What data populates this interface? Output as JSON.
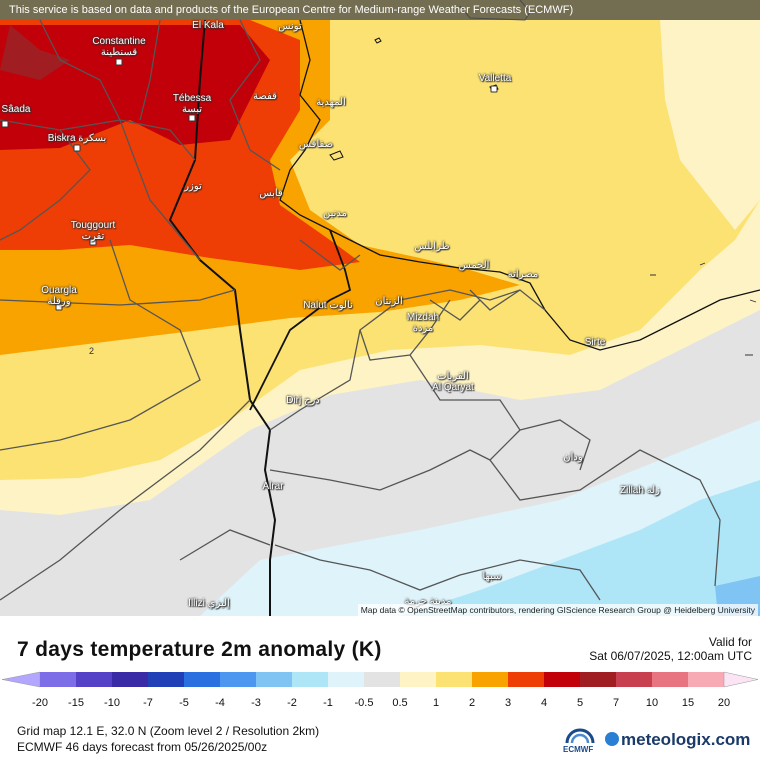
{
  "banner": "This service is based on data and products of the European Centre for Medium-range Weather Forecasts (ECMWF)",
  "attribution": "Map data © OpenStreetMap contributors, rendering GIScience Research Group @ Heidelberg University",
  "title": "7 days temperature 2m anomaly (K)",
  "valid_label": "Valid for",
  "valid_time": "Sat 06/07/2025, 12:00am UTC",
  "grid_info": "Grid map 12.1 E, 32.0 N (Zoom level 2 / Resolution 2km)",
  "forecast_info": "ECMWF 46 days forecast from  05/26/2025/00z",
  "contour_label": "2",
  "logo_ecmwf": "ECMWF",
  "logo_meteologix": "meteologix.com",
  "legend": {
    "ticks": [
      "-20",
      "-15",
      "-10",
      "-7",
      "-5",
      "-4",
      "-3",
      "-2",
      "-1",
      "-0.5",
      "0.5",
      "1",
      "2",
      "3",
      "4",
      "5",
      "7",
      "10",
      "15",
      "20"
    ],
    "colors": [
      "#b3a6ff",
      "#7d6ee8",
      "#5540c8",
      "#3a2aa6",
      "#2040b8",
      "#2a70e0",
      "#4d97f0",
      "#80c4f4",
      "#aee6f8",
      "#dff4fa",
      "#e3e3e3",
      "#fdf3c4",
      "#fbe273",
      "#f8a300",
      "#ee3e06",
      "#c2000a",
      "#a01e22",
      "#c84050",
      "#e87482",
      "#f8aab4",
      "#fbe4f4"
    ]
  },
  "cities": {
    "constantine": {
      "name": "Constantine",
      "ar": "قسنطينة"
    },
    "tebessa": {
      "name": "Tébessa",
      "ar": "تبسة"
    },
    "biskra": {
      "name": "Biskra بسكرة",
      "ar": ""
    },
    "saada": {
      "name": "Sâada",
      "ar": ""
    },
    "touggourt": {
      "name": "Touggourt",
      "ar": "تقرت"
    },
    "ouargla": {
      "name": "Ouargla",
      "ar": "ورقلة"
    },
    "elkala": {
      "name": "El Kala",
      "ar": ""
    },
    "tunis": {
      "name": "تونس",
      "ar": ""
    },
    "gafsa": {
      "name": "قفصة",
      "ar": ""
    },
    "mahdia": {
      "name": "المهدية",
      "ar": ""
    },
    "sfax": {
      "name": "صفاقس",
      "ar": ""
    },
    "tozeur": {
      "name": "توزر",
      "ar": ""
    },
    "gabes": {
      "name": "قابس",
      "ar": ""
    },
    "medenine": {
      "name": "مدنين",
      "ar": ""
    },
    "valletta": {
      "name": "Valletta",
      "ar": ""
    },
    "tripoli": {
      "name": "طرابلس",
      "ar": ""
    },
    "misrata": {
      "name": "مصراتة",
      "ar": ""
    },
    "khoms": {
      "name": "الخمس",
      "ar": ""
    },
    "nalut": {
      "name": "Nalut نالوت",
      "ar": ""
    },
    "zintan": {
      "name": "الزنتان",
      "ar": ""
    },
    "mizdah": {
      "name": "Mizdah",
      "ar": "مزدة"
    },
    "sirte": {
      "name": "Sirte",
      "ar": ""
    },
    "qaryat": {
      "name": "القريات",
      "ar": "Al Qaryat"
    },
    "dirj": {
      "name": "Dirj درج",
      "ar": ""
    },
    "waddan": {
      "name": "ودان",
      "ar": ""
    },
    "zillah": {
      "name": "Zillah زلة",
      "ar": ""
    },
    "alrar": {
      "name": "Alrar",
      "ar": ""
    },
    "sabha": {
      "name": "سبها",
      "ar": ""
    },
    "illizi": {
      "name": "Illizi إليزي",
      "ar": ""
    },
    "brak": {
      "name": "مدينة حرمة",
      "ar": ""
    }
  }
}
